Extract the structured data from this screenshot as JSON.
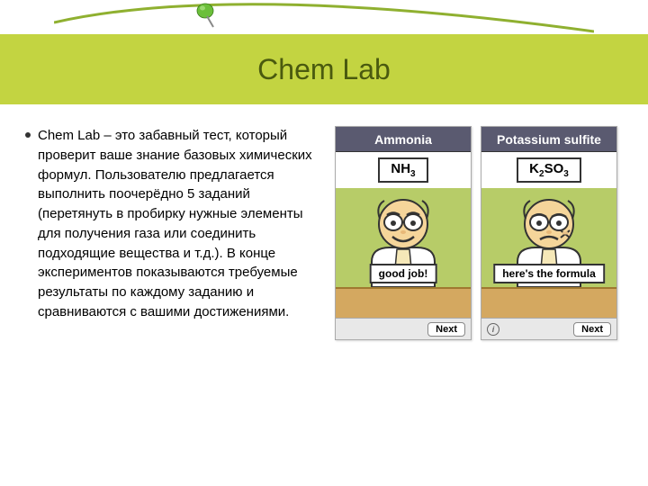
{
  "title": "Chem Lab",
  "description": "Chem Lab – это забавный тест, который проверит ваше знание базовых химических формул. Пользователю предлагается выполнить поочерёдно 5 заданий (перетянуть в пробирку нужные элементы для получения газа или соединить подходящие вещества и т.д.). В конце экспериментов показываются требуемые результаты по каждому заданию и сравниваются с вашими достижениями.",
  "screenshots": [
    {
      "header": "Ammonia",
      "formula_html": "NH<sub>3</sub>",
      "caption": "good job!",
      "next_label": "Next",
      "expression": "happy",
      "show_info": false
    },
    {
      "header": "Potassium sulfite",
      "formula_html": "K<sub>2</sub>SO<sub>3</sub>",
      "caption": "here's the formula",
      "next_label": "Next",
      "expression": "hurt",
      "show_info": true
    }
  ],
  "colors": {
    "band": "#c3d441",
    "title_text": "#4a5a0f",
    "scr_header": "#5a5a70",
    "scr_mid": "#b7cc68",
    "scr_desk": "#d4a860",
    "swoosh": "#8fb030",
    "pin_head": "#6bbf3a"
  }
}
